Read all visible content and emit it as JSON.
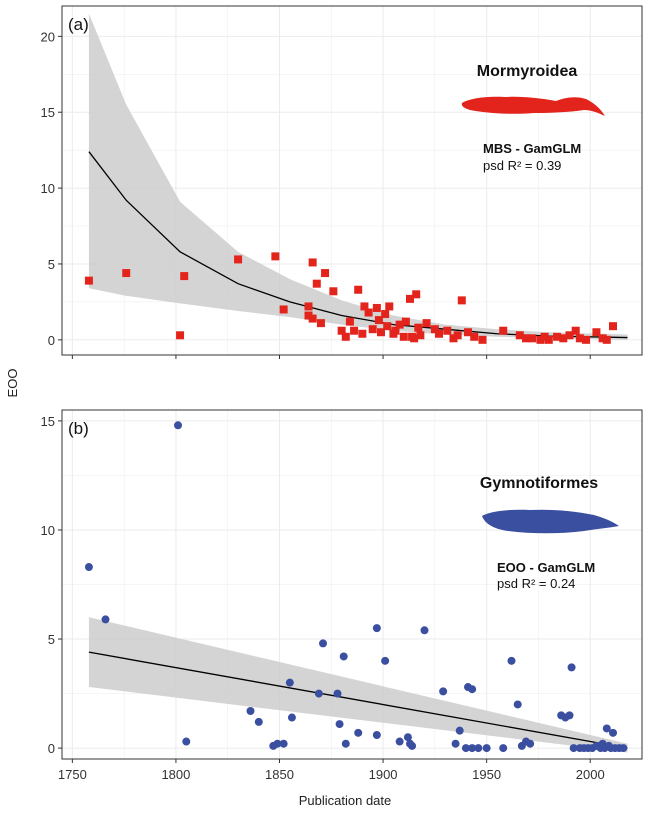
{
  "shared": {
    "xlabel": "Publication date",
    "ylabel": "EOO",
    "xlim": [
      1745,
      2025
    ],
    "xticks": [
      1750,
      1800,
      1850,
      1900,
      1950,
      2000
    ]
  },
  "chart_data": [
    {
      "type": "scatter",
      "panel_label": "(a)",
      "title": "Mormyroidea",
      "model_label": "MBS - GamGLM",
      "fit_label": "psd R² = 0.39",
      "ylim": [
        -1,
        22
      ],
      "yticks": [
        0,
        5,
        10,
        15,
        20
      ],
      "point_shape": "square",
      "point_color": "#e3241c",
      "grid": true,
      "points": [
        [
          1758,
          3.9
        ],
        [
          1776,
          4.4
        ],
        [
          1802,
          0.3
        ],
        [
          1804,
          4.2
        ],
        [
          1830,
          5.3
        ],
        [
          1848,
          5.5
        ],
        [
          1852,
          2.0
        ],
        [
          1864,
          2.2
        ],
        [
          1864,
          1.6
        ],
        [
          1866,
          5.1
        ],
        [
          1866,
          1.4
        ],
        [
          1868,
          3.7
        ],
        [
          1870,
          1.1
        ],
        [
          1872,
          4.4
        ],
        [
          1876,
          3.2
        ],
        [
          1880,
          0.6
        ],
        [
          1882,
          0.2
        ],
        [
          1884,
          1.2
        ],
        [
          1886,
          0.6
        ],
        [
          1888,
          3.3
        ],
        [
          1890,
          0.4
        ],
        [
          1891,
          2.2
        ],
        [
          1893,
          1.8
        ],
        [
          1895,
          0.7
        ],
        [
          1897,
          2.1
        ],
        [
          1898,
          1.3
        ],
        [
          1899,
          0.5
        ],
        [
          1901,
          1.7
        ],
        [
          1902,
          0.9
        ],
        [
          1903,
          2.2
        ],
        [
          1905,
          0.4
        ],
        [
          1906,
          0.6
        ],
        [
          1908,
          1.0
        ],
        [
          1910,
          0.2
        ],
        [
          1911,
          1.2
        ],
        [
          1913,
          2.7
        ],
        [
          1914,
          0.2
        ],
        [
          1915,
          0.1
        ],
        [
          1916,
          3.0
        ],
        [
          1917,
          0.8
        ],
        [
          1918,
          0.3
        ],
        [
          1921,
          1.1
        ],
        [
          1925,
          0.7
        ],
        [
          1927,
          0.4
        ],
        [
          1931,
          0.6
        ],
        [
          1934,
          0.1
        ],
        [
          1936,
          0.3
        ],
        [
          1938,
          2.6
        ],
        [
          1941,
          0.5
        ],
        [
          1944,
          0.2
        ],
        [
          1948,
          0.0
        ],
        [
          1958,
          0.6
        ],
        [
          1966,
          0.3
        ],
        [
          1969,
          0.1
        ],
        [
          1972,
          0.1
        ],
        [
          1976,
          0.0
        ],
        [
          1978,
          0.2
        ],
        [
          1980,
          0.0
        ],
        [
          1984,
          0.2
        ],
        [
          1987,
          0.1
        ],
        [
          1990,
          0.3
        ],
        [
          1993,
          0.6
        ],
        [
          1995,
          0.1
        ],
        [
          1998,
          0.0
        ],
        [
          2003,
          0.5
        ],
        [
          2006,
          0.1
        ],
        [
          2008,
          0.0
        ],
        [
          2011,
          0.9
        ]
      ],
      "fit_x": [
        1758,
        1776,
        1802,
        1830,
        1855,
        1880,
        1905,
        1930,
        1955,
        1980,
        2018
      ],
      "fit_y": [
        12.4,
        9.2,
        5.8,
        3.7,
        2.5,
        1.6,
        1.0,
        0.7,
        0.4,
        0.25,
        0.15
      ],
      "ci_lower": [
        3.4,
        2.9,
        2.4,
        1.9,
        1.5,
        1.0,
        0.6,
        0.35,
        0.2,
        0.1,
        0.0
      ],
      "ci_upper": [
        21.5,
        15.5,
        9.1,
        5.8,
        4.0,
        2.6,
        1.6,
        1.0,
        0.7,
        0.5,
        0.35
      ]
    },
    {
      "type": "scatter",
      "panel_label": "(b)",
      "title": "Gymnotiformes",
      "model_label": "EOO - GamGLM",
      "fit_label": "psd R² = 0.24",
      "ylim": [
        -0.5,
        15.5
      ],
      "yticks": [
        0,
        5,
        10,
        15
      ],
      "point_shape": "circle",
      "point_color": "#3b4fa0",
      "grid": true,
      "points": [
        [
          1758,
          8.3
        ],
        [
          1766,
          5.9
        ],
        [
          1801,
          14.8
        ],
        [
          1805,
          0.3
        ],
        [
          1836,
          1.7
        ],
        [
          1840,
          1.2
        ],
        [
          1847,
          0.1
        ],
        [
          1849,
          0.2
        ],
        [
          1852,
          0.2
        ],
        [
          1855,
          3.0
        ],
        [
          1856,
          1.4
        ],
        [
          1869,
          2.5
        ],
        [
          1871,
          4.8
        ],
        [
          1878,
          2.5
        ],
        [
          1879,
          1.1
        ],
        [
          1881,
          4.2
        ],
        [
          1882,
          0.2
        ],
        [
          1888,
          0.7
        ],
        [
          1897,
          5.5
        ],
        [
          1897,
          0.6
        ],
        [
          1901,
          4.0
        ],
        [
          1908,
          0.3
        ],
        [
          1912,
          0.5
        ],
        [
          1913,
          0.2
        ],
        [
          1914,
          0.1
        ],
        [
          1920,
          5.4
        ],
        [
          1929,
          2.6
        ],
        [
          1935,
          0.2
        ],
        [
          1937,
          0.8
        ],
        [
          1940,
          0.0
        ],
        [
          1941,
          2.8
        ],
        [
          1943,
          2.7
        ],
        [
          1943,
          0.0
        ],
        [
          1946,
          0.0
        ],
        [
          1950,
          0.0
        ],
        [
          1958,
          0.0
        ],
        [
          1962,
          4.0
        ],
        [
          1965,
          2.0
        ],
        [
          1967,
          0.1
        ],
        [
          1969,
          0.3
        ],
        [
          1971,
          0.2
        ],
        [
          1986,
          1.5
        ],
        [
          1988,
          1.4
        ],
        [
          1990,
          1.5
        ],
        [
          1991,
          3.7
        ],
        [
          1992,
          0.0
        ],
        [
          1995,
          0.0
        ],
        [
          1997,
          0.0
        ],
        [
          1999,
          0.0
        ],
        [
          2001,
          0.0
        ],
        [
          2003,
          0.1
        ],
        [
          2005,
          0.0
        ],
        [
          2006,
          0.2
        ],
        [
          2007,
          0.0
        ],
        [
          2008,
          0.9
        ],
        [
          2009,
          0.1
        ],
        [
          2010,
          0.0
        ],
        [
          2011,
          0.7
        ],
        [
          2012,
          0.0
        ],
        [
          2014,
          0.0
        ],
        [
          2016,
          0.0
        ]
      ],
      "fit_x": [
        1758,
        2018
      ],
      "fit_y": [
        4.4,
        0.0
      ],
      "ci_lower": [
        2.8,
        -0.2
      ],
      "ci_upper": [
        6.0,
        0.2
      ]
    }
  ],
  "colors": {
    "panel_bg": "#ffffff",
    "grid": "#ebebeb",
    "ribbon": "#cccccc",
    "fit_line": "#000000",
    "mormyroidea_fish": "#e3241c",
    "gymnotiformes_fish": "#3b4fa0"
  },
  "icons": {
    "panel_a": "mormyroid-fish-silhouette",
    "panel_b": "gymnotiform-fish-silhouette"
  }
}
